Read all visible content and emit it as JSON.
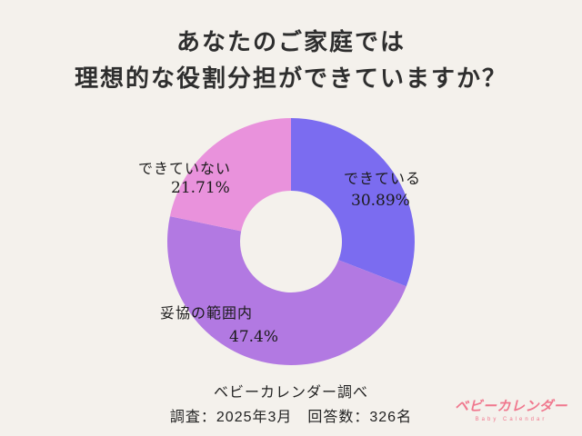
{
  "title": {
    "line1": "あなたのご家庭では",
    "line2": "理想的な役割分担ができていますか？"
  },
  "chart_data": {
    "type": "pie",
    "donut": true,
    "start_angle_deg": 0,
    "direction": "clockwise",
    "labels": [
      "できている",
      "妥協の範囲内",
      "できていない"
    ],
    "values": [
      30.89,
      47.4,
      21.71
    ],
    "value_labels": [
      "30.89%",
      "47.4%",
      "21.71%"
    ],
    "colors": [
      "#7b6cf0",
      "#b279e2",
      "#e992dc"
    ],
    "background": "#f4f1ec"
  },
  "footer": {
    "source": "ベビーカレンダー調べ",
    "detail": "調査：2025年3月　回答数：326名"
  },
  "brand": {
    "name": "ベビーカレンダー",
    "subtitle": "Baby Calendar",
    "color": "#f0788e"
  }
}
